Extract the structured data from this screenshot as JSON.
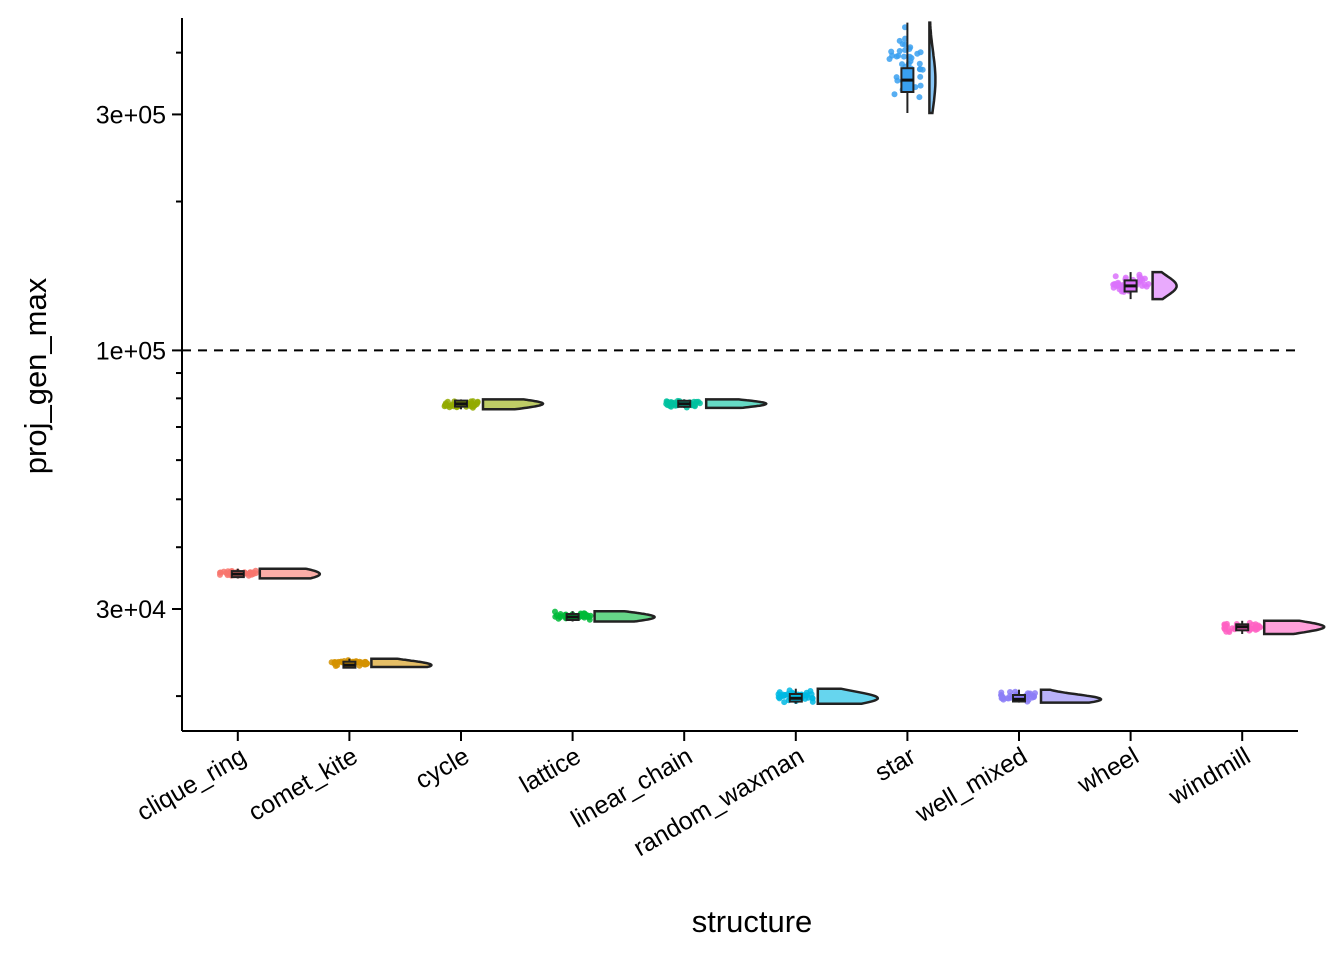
{
  "chart_data": {
    "type": "raincloud",
    "xlabel": "structure",
    "ylabel": "proj_gen_max",
    "y_scale": "log10",
    "ylim": [
      17000,
      470000
    ],
    "y_ticks": [
      {
        "value": 30000,
        "label": "3e+04"
      },
      {
        "value": 100000,
        "label": "1e+05"
      },
      {
        "value": 300000,
        "label": "3e+05"
      }
    ],
    "y_minor_ticks": [
      20000,
      40000,
      50000,
      60000,
      70000,
      80000,
      90000,
      200000,
      400000
    ],
    "reference_line": {
      "y": 100000,
      "style": "dashed"
    },
    "categories": [
      "clique_ring",
      "comet_kite",
      "cycle",
      "lattice",
      "linear_chain",
      "random_waxman",
      "star",
      "well_mixed",
      "wheel",
      "windmill"
    ],
    "colors": [
      "#F8766D",
      "#D39200",
      "#93AA00",
      "#00BA38",
      "#00C19F",
      "#00B9E3",
      "#39A0F0",
      "#8C7EF7",
      "#DB72FB",
      "#FF61C3"
    ],
    "series": [
      {
        "category": "clique_ring",
        "median": 35300,
        "q1": 35000,
        "q3": 35600,
        "min": 34600,
        "max": 36200,
        "spread": 0.015
      },
      {
        "category": "comet_kite",
        "median": 23100,
        "q1": 22950,
        "q3": 23350,
        "min": 22900,
        "max": 23800,
        "spread": 0.01
      },
      {
        "category": "cycle",
        "median": 78000,
        "q1": 77300,
        "q3": 78800,
        "min": 76000,
        "max": 79600,
        "spread": 0.01
      },
      {
        "category": "lattice",
        "median": 28900,
        "q1": 28600,
        "q3": 29200,
        "min": 28300,
        "max": 29700,
        "spread": 0.01
      },
      {
        "category": "linear_chain",
        "median": 78000,
        "q1": 77400,
        "q3": 78600,
        "min": 76500,
        "max": 79600,
        "spread": 0.008
      },
      {
        "category": "random_waxman",
        "median": 19800,
        "q1": 19500,
        "q3": 20200,
        "min": 19300,
        "max": 20700,
        "spread": 0.014
      },
      {
        "category": "star",
        "median": 352000,
        "q1": 333000,
        "q3": 372000,
        "min": 302000,
        "max": 460000,
        "spread": 0.05
      },
      {
        "category": "well_mixed",
        "median": 19700,
        "q1": 19500,
        "q3": 20100,
        "min": 19400,
        "max": 20600,
        "spread": 0.01
      },
      {
        "category": "wheel",
        "median": 135000,
        "q1": 131500,
        "q3": 138500,
        "min": 127000,
        "max": 144000,
        "spread": 0.02
      },
      {
        "category": "windmill",
        "median": 27600,
        "q1": 27200,
        "q3": 27900,
        "min": 26700,
        "max": 28400,
        "spread": 0.012
      }
    ]
  }
}
